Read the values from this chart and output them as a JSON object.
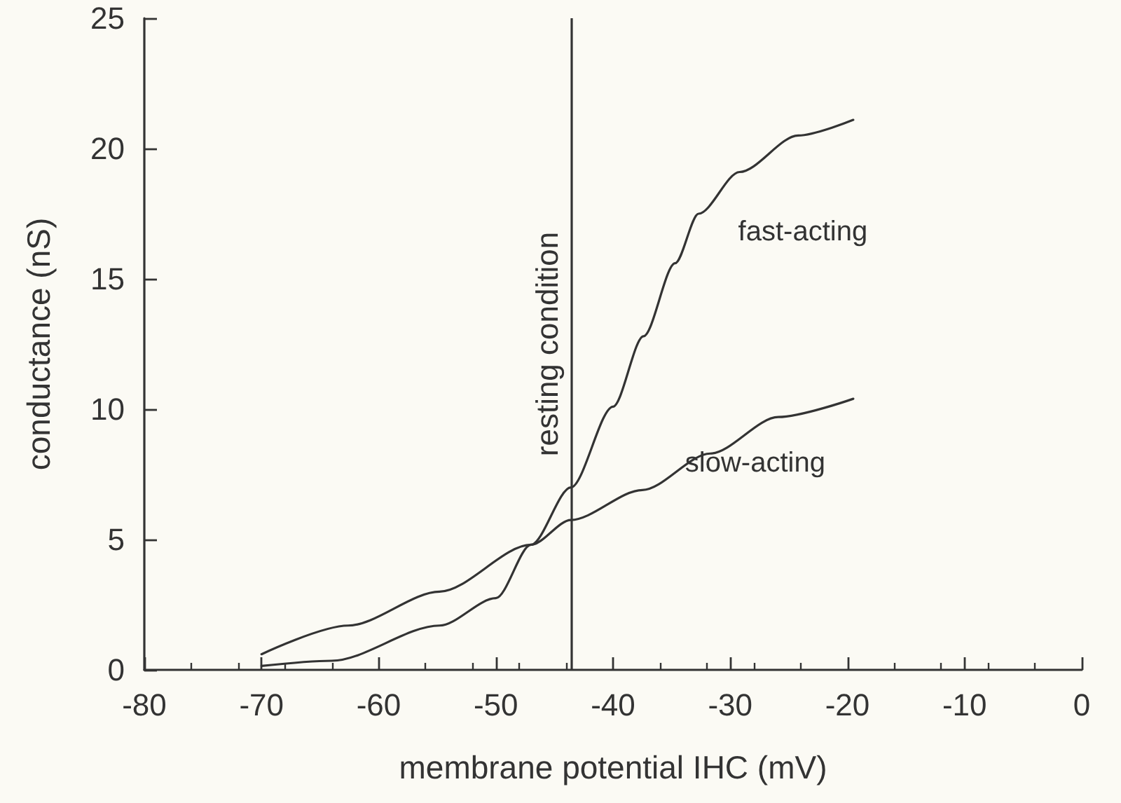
{
  "chart_data": {
    "type": "line",
    "xlabel": "membrane potential IHC (mV)",
    "ylabel": "conductance (nS)",
    "xlim": [
      -80,
      0
    ],
    "xticks": [
      -80,
      -70,
      -60,
      -50,
      -40,
      -30,
      -20,
      -10,
      0
    ],
    "ylim": [
      0,
      25
    ],
    "yticks": [
      0,
      5,
      10,
      15,
      20,
      25
    ],
    "grid": false,
    "legend": false,
    "marker": "none",
    "line_style": "solid",
    "series": [
      {
        "name": "fast-acting",
        "color": "#333333",
        "x": [
          -70,
          -64,
          -54.8,
          -50,
          -47,
          -43.6,
          -40,
          -37.4,
          -34.7,
          -32.7,
          -29.2,
          -24.2,
          -19.5
        ],
        "values": [
          0.15,
          0.35,
          1.7,
          2.75,
          4.8,
          7.0,
          10.1,
          12.8,
          15.6,
          17.5,
          19.1,
          20.5,
          21.1
        ]
      },
      {
        "name": "slow-acting",
        "color": "#333333",
        "x": [
          -70,
          -62.6,
          -54.8,
          -47,
          -43.6,
          -37.5,
          -31.7,
          -25.9,
          -19.5
        ],
        "values": [
          0.6,
          1.7,
          3.0,
          4.8,
          5.75,
          6.9,
          8.3,
          9.7,
          10.4
        ]
      }
    ],
    "ref_lines": [
      {
        "axis": "x",
        "value": -43.6,
        "label": "resting condition",
        "color": "#333333"
      }
    ]
  }
}
